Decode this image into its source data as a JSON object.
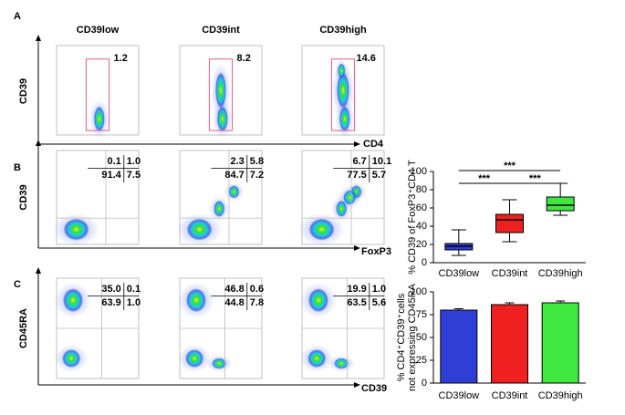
{
  "panel_labels": [
    "A",
    "B",
    "C"
  ],
  "panel_a": {
    "columns": [
      "CD39low",
      "CD39int",
      "CD39high"
    ],
    "gate_values": [
      "1.2",
      "8.2",
      "14.6"
    ],
    "y_label": "CD39",
    "x_label": "CD4"
  },
  "panel_b": {
    "quadrants": [
      [
        [
          "0.1",
          "1.0"
        ],
        [
          "91.4",
          "7.5"
        ]
      ],
      [
        [
          "2.3",
          "5.8"
        ],
        [
          "84.7",
          "7.2"
        ]
      ],
      [
        [
          "6.7",
          "10.1"
        ],
        [
          "77.5",
          "5.7"
        ]
      ]
    ],
    "y_label": "CD39",
    "x_label": "FoxP3"
  },
  "panel_c": {
    "quadrants": [
      [
        [
          "35.0",
          "0.1"
        ],
        [
          "63.9",
          "1.0"
        ]
      ],
      [
        [
          "46.8",
          "0.6"
        ],
        [
          "44.8",
          "7.8"
        ]
      ],
      [
        [
          "19.9",
          "1.0"
        ],
        [
          "63.5",
          "5.6"
        ]
      ]
    ],
    "y_label": "CD45RA",
    "x_label": "CD39"
  },
  "chart_data": [
    {
      "type": "box",
      "y_label": "% CD39 of FoxP3⁺CD4 T",
      "categories": [
        "CD39low",
        "CD39int",
        "CD39high"
      ],
      "colors": [
        "#2f3fd6",
        "#ee2020",
        "#3ee83e"
      ],
      "boxes": [
        {
          "min": 8,
          "q1": 14,
          "median": 18,
          "q3": 21,
          "max": 36
        },
        {
          "min": 23,
          "q1": 33,
          "median": 47,
          "q3": 53,
          "max": 69
        },
        {
          "min": 52,
          "q1": 57,
          "median": 63,
          "q3": 72,
          "max": 87
        }
      ],
      "ylim": [
        0,
        100
      ],
      "yticks": [
        0,
        20,
        40,
        60,
        80,
        100
      ],
      "annotations": [
        "***",
        "***",
        "***"
      ]
    },
    {
      "type": "bar",
      "y_label": [
        "% CD4⁺CD39⁺cells",
        "not expressing CD45RA"
      ],
      "categories": [
        "CD39low",
        "CD39int",
        "CD39high"
      ],
      "colors": [
        "#2f3fd6",
        "#ee2020",
        "#3ee83e"
      ],
      "values": [
        80,
        86,
        88
      ],
      "errors": [
        1.5,
        2,
        2
      ],
      "ylim": [
        0,
        100
      ],
      "yticks": [
        0,
        25,
        50,
        75,
        100
      ]
    }
  ]
}
